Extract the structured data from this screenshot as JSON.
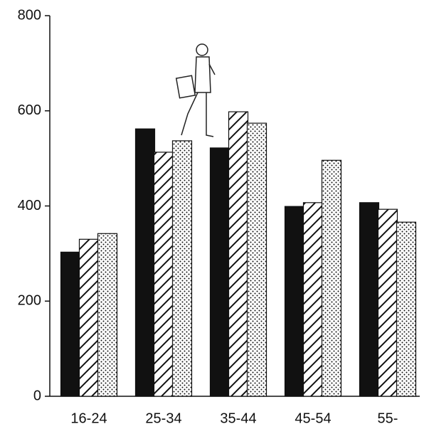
{
  "chart_data": {
    "type": "bar",
    "categories": [
      "16-24",
      "25-34",
      "35-44",
      "45-54",
      "55-"
    ],
    "series": [
      {
        "color": "#111111",
        "pattern": "solid",
        "values": [
          303,
          562,
          522,
          399,
          407
        ]
      },
      {
        "color": "#111111",
        "pattern": "hatch",
        "values": [
          330,
          513,
          598,
          407,
          393
        ]
      },
      {
        "color": "#111111",
        "pattern": "dots",
        "values": [
          342,
          537,
          574,
          496,
          366
        ]
      }
    ],
    "ylim": [
      0,
      800
    ],
    "yticks": [
      0,
      200,
      400,
      600,
      800
    ],
    "grid": false
  }
}
